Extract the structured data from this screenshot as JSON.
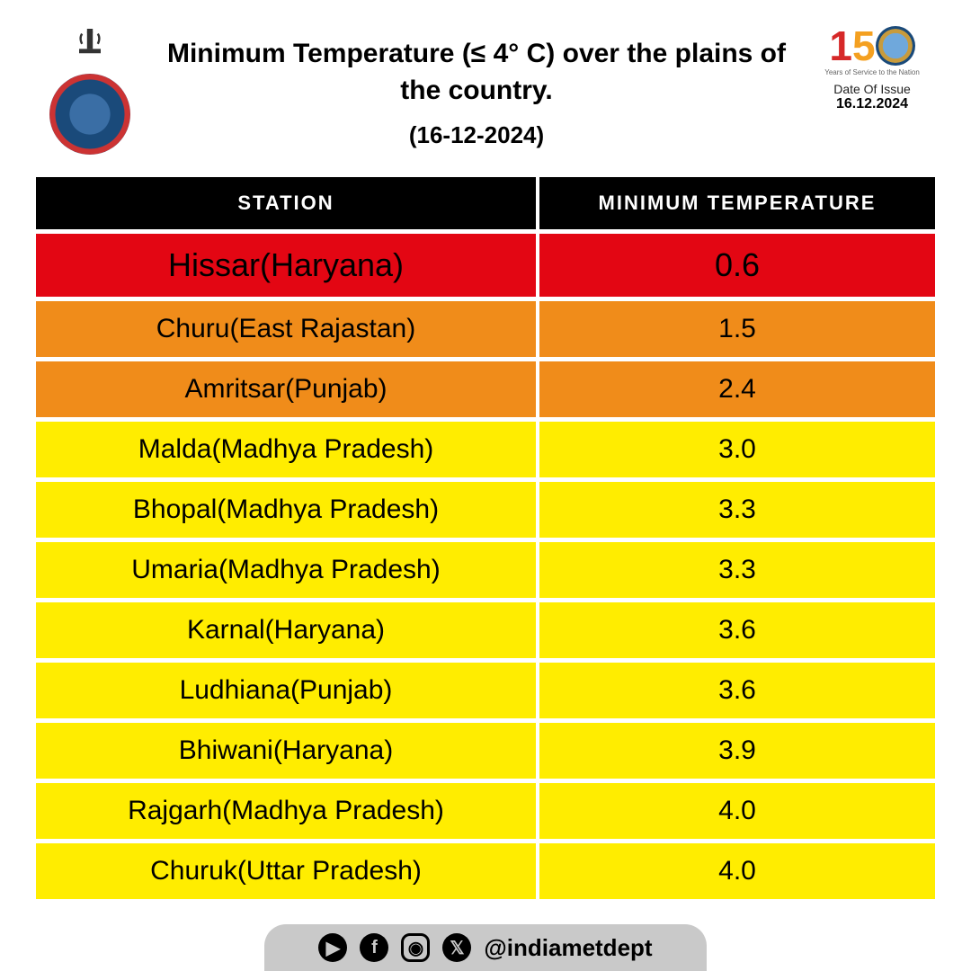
{
  "header": {
    "title": "Minimum Temperature (≤ 4° C) over the plains of the country.",
    "date_paren": "(16-12-2024)",
    "issue_label": "Date Of Issue",
    "issue_date": "16.12.2024",
    "anniversary_subtext": "Years of Service to the Nation"
  },
  "table": {
    "type": "table",
    "columns": [
      "STATION",
      "MINIMUM TEMPERATURE"
    ],
    "header_bg": "#000000",
    "header_text_color": "#ffffff",
    "header_fontsize": 22,
    "row_gap": 5,
    "cell_fontsize": 30,
    "highlight_fontsize": 36,
    "color_scale": {
      "red": "#e30613",
      "orange": "#f08c1a",
      "yellow": "#ffed00"
    },
    "rows": [
      {
        "station": "Hissar(Haryana)",
        "temp": "0.6",
        "bg": "#e30613",
        "highlight": true
      },
      {
        "station": "Churu(East Rajastan)",
        "temp": "1.5",
        "bg": "#f08c1a"
      },
      {
        "station": "Amritsar(Punjab)",
        "temp": "2.4",
        "bg": "#f08c1a"
      },
      {
        "station": "Malda(Madhya Pradesh)",
        "temp": "3.0",
        "bg": "#ffed00"
      },
      {
        "station": "Bhopal(Madhya Pradesh)",
        "temp": "3.3",
        "bg": "#ffed00"
      },
      {
        "station": "Umaria(Madhya Pradesh)",
        "temp": "3.3",
        "bg": "#ffed00"
      },
      {
        "station": "Karnal(Haryana)",
        "temp": "3.6",
        "bg": "#ffed00"
      },
      {
        "station": "Ludhiana(Punjab)",
        "temp": "3.6",
        "bg": "#ffed00"
      },
      {
        "station": "Bhiwani(Haryana)",
        "temp": "3.9",
        "bg": "#ffed00"
      },
      {
        "station": "Rajgarh(Madhya Pradesh)",
        "temp": "4.0",
        "bg": "#ffed00"
      },
      {
        "station": "Churuk(Uttar Pradesh)",
        "temp": "4.0",
        "bg": "#ffed00"
      }
    ]
  },
  "footer": {
    "handle": "@indiametdept",
    "pill_bg": "#c9c9c9",
    "icons": [
      "youtube",
      "facebook",
      "instagram",
      "x"
    ]
  },
  "colors": {
    "page_bg": "#ffffff",
    "text": "#000000"
  }
}
